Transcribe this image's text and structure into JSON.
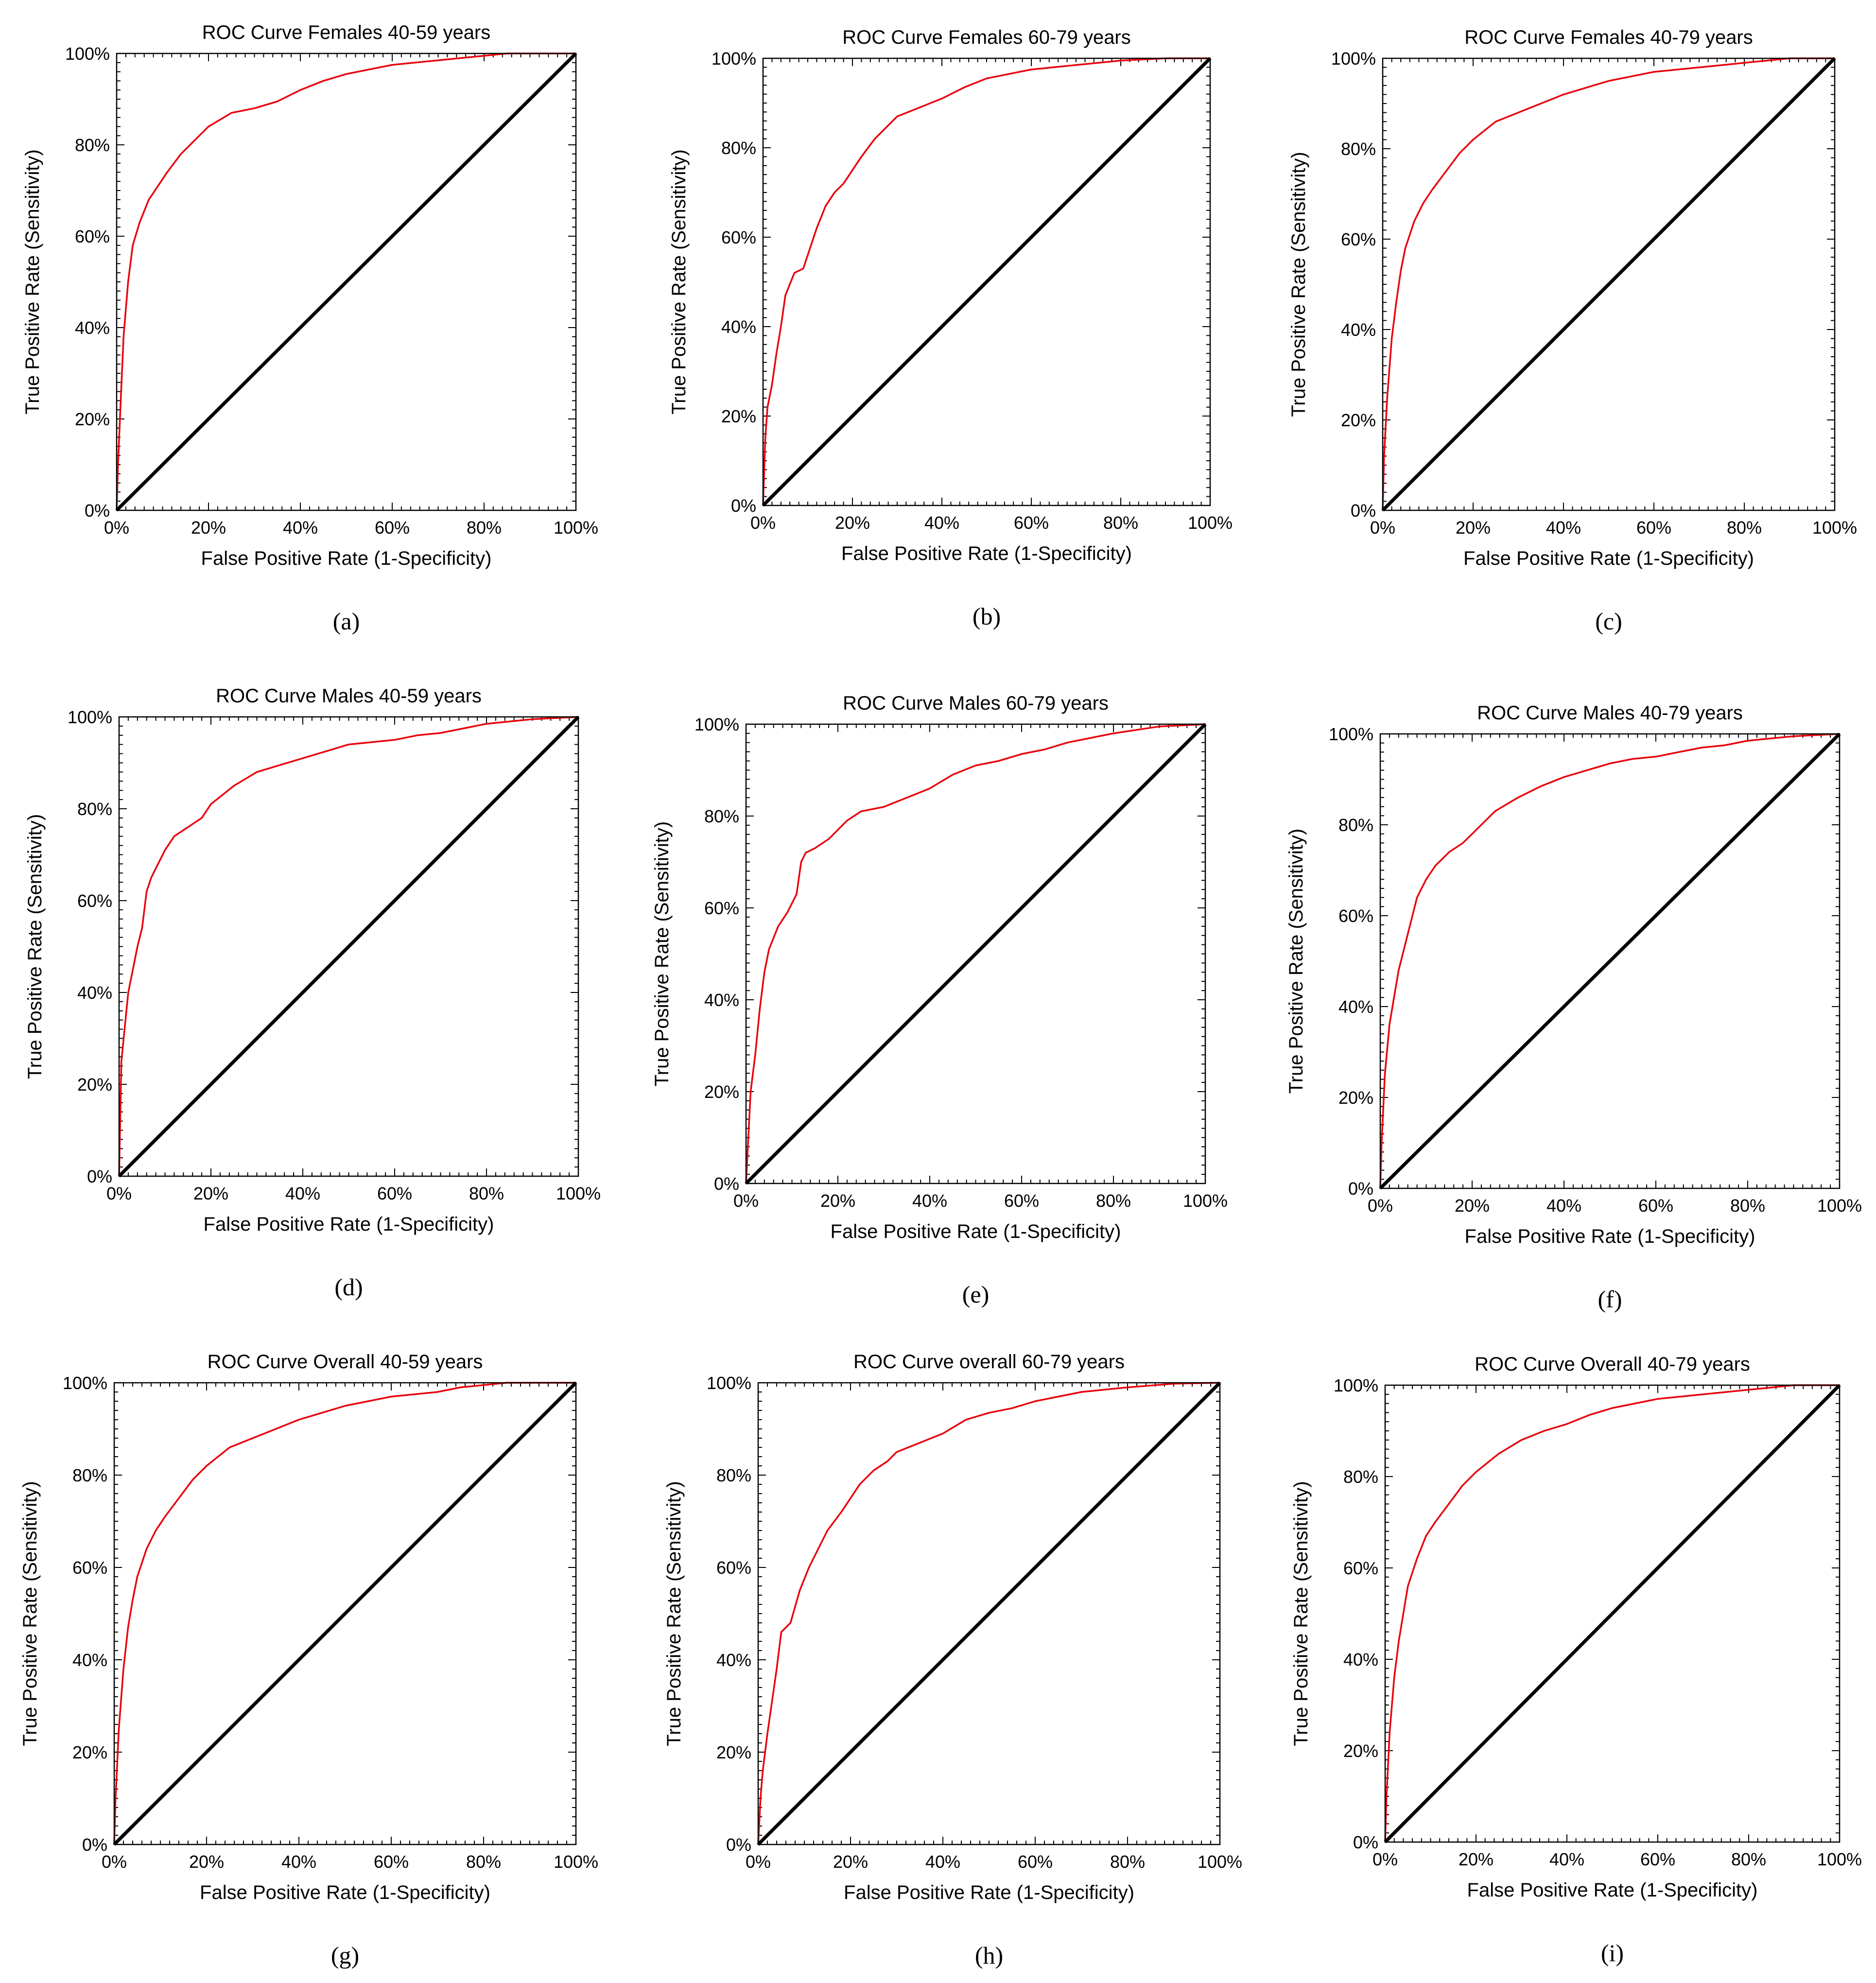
{
  "figure": {
    "colors": {
      "roc_curve": "#e8000b",
      "diagonal": "#000000",
      "axes": "#000000"
    }
  },
  "chart_data": [
    {
      "type": "line",
      "caption": "(a)",
      "title": "ROC Curve Females 40-59 years",
      "xlabel": "False Positive Rate (1-Specificity)",
      "ylabel": "True Positive Rate (Sensitivity)",
      "xlim": [
        0,
        100
      ],
      "ylim": [
        0,
        100
      ],
      "x_ticks": [
        "0%",
        "20%",
        "40%",
        "60%",
        "80%",
        "100%"
      ],
      "y_ticks": [
        "0%",
        "20%",
        "40%",
        "60%",
        "80%",
        "100%"
      ],
      "grid": false,
      "legend": "none",
      "series": [
        {
          "role": "roc",
          "x": [
            0,
            0.3,
            0.8,
            1.5,
            2.5,
            3.5,
            5,
            7,
            9,
            11,
            14,
            17,
            20,
            25,
            30,
            35,
            40,
            45,
            50,
            55,
            60,
            65,
            70,
            75,
            80,
            85,
            90,
            95,
            100
          ],
          "y": [
            0,
            10,
            22,
            38,
            50,
            58,
            63,
            68,
            71,
            74,
            78,
            81,
            84,
            87,
            88,
            89.5,
            92,
            94,
            95.5,
            96.5,
            97.5,
            98,
            98.5,
            99,
            99.5,
            100,
            100,
            100,
            100
          ]
        },
        {
          "role": "diagonal",
          "x": [
            0,
            100
          ],
          "y": [
            0,
            100
          ]
        }
      ]
    },
    {
      "type": "line",
      "caption": "(b)",
      "title": "ROC Curve Females 60-79 years",
      "xlabel": "False Positive Rate (1-Specificity)",
      "ylabel": "True Positive Rate (Sensitivity)",
      "xlim": [
        0,
        100
      ],
      "ylim": [
        0,
        100
      ],
      "x_ticks": [
        "0%",
        "20%",
        "40%",
        "60%",
        "80%",
        "100%"
      ],
      "y_ticks": [
        "0%",
        "20%",
        "40%",
        "60%",
        "80%",
        "100%"
      ],
      "grid": false,
      "legend": "none",
      "series": [
        {
          "role": "roc",
          "x": [
            0,
            0.5,
            1,
            2,
            3,
            4,
            5,
            7,
            9,
            10,
            12,
            14,
            16,
            18,
            20,
            22,
            25,
            28,
            30,
            35,
            40,
            45,
            50,
            55,
            60,
            70,
            80,
            90,
            100
          ],
          "y": [
            0,
            15,
            22,
            27,
            34,
            40,
            47,
            52,
            53,
            56,
            62,
            67,
            70,
            72,
            75,
            78,
            82,
            85,
            87,
            89,
            91,
            93.5,
            95.5,
            96.5,
            97.5,
            98.5,
            99.5,
            100,
            100
          ]
        },
        {
          "role": "diagonal",
          "x": [
            0,
            100
          ],
          "y": [
            0,
            100
          ]
        }
      ]
    },
    {
      "type": "line",
      "caption": "(c)",
      "title": "ROC Curve Females 40-79 years",
      "xlabel": "False Positive Rate (1-Specificity)",
      "ylabel": "True Positive Rate (Sensitivity)",
      "xlim": [
        0,
        100
      ],
      "ylim": [
        0,
        100
      ],
      "x_ticks": [
        "0%",
        "20%",
        "40%",
        "60%",
        "80%",
        "100%"
      ],
      "y_ticks": [
        "0%",
        "20%",
        "40%",
        "60%",
        "80%",
        "100%"
      ],
      "grid": false,
      "legend": "none",
      "series": [
        {
          "role": "roc",
          "x": [
            0,
            0.3,
            1,
            2,
            3,
            4,
            5,
            7,
            9,
            11,
            14,
            17,
            20,
            25,
            30,
            35,
            40,
            45,
            50,
            55,
            60,
            65,
            70,
            75,
            80,
            85,
            90,
            95,
            100
          ],
          "y": [
            0,
            12,
            25,
            38,
            46,
            53,
            58,
            64,
            68,
            71,
            75,
            79,
            82,
            86,
            88,
            90,
            92,
            93.5,
            95,
            96,
            97,
            97.5,
            98,
            98.5,
            99,
            99.5,
            100,
            100,
            100
          ]
        },
        {
          "role": "diagonal",
          "x": [
            0,
            100
          ],
          "y": [
            0,
            100
          ]
        }
      ]
    },
    {
      "type": "line",
      "caption": "(d)",
      "title": "ROC Curve Males 40-59 years",
      "xlabel": "False Positive Rate (1-Specificity)",
      "ylabel": "True Positive Rate (Sensitivity)",
      "xlim": [
        0,
        100
      ],
      "ylim": [
        0,
        100
      ],
      "x_ticks": [
        "0%",
        "20%",
        "40%",
        "60%",
        "80%",
        "100%"
      ],
      "y_ticks": [
        "0%",
        "20%",
        "40%",
        "60%",
        "80%",
        "100%"
      ],
      "grid": false,
      "legend": "none",
      "series": [
        {
          "role": "roc",
          "x": [
            0,
            0.5,
            1,
            2,
            3,
            4,
            5,
            6,
            7,
            8,
            10,
            12,
            15,
            18,
            20,
            25,
            30,
            35,
            40,
            45,
            50,
            55,
            60,
            65,
            70,
            75,
            80,
            90,
            100
          ],
          "y": [
            0,
            25,
            30,
            40,
            45,
            50,
            54,
            62,
            65,
            67,
            71,
            74,
            76,
            78,
            81,
            85,
            88,
            89.5,
            91,
            92.5,
            94,
            94.5,
            95,
            96,
            96.5,
            97.5,
            98.5,
            99.5,
            100
          ]
        },
        {
          "role": "diagonal",
          "x": [
            0,
            100
          ],
          "y": [
            0,
            100
          ]
        }
      ]
    },
    {
      "type": "line",
      "caption": "(e)",
      "title": "ROC Curve Males 60-79 years",
      "xlabel": "False Positive Rate (1-Specificity)",
      "ylabel": "True Positive Rate (Sensitivity)",
      "xlim": [
        0,
        100
      ],
      "ylim": [
        0,
        100
      ],
      "x_ticks": [
        "0%",
        "20%",
        "40%",
        "60%",
        "80%",
        "100%"
      ],
      "y_ticks": [
        "0%",
        "20%",
        "40%",
        "60%",
        "80%",
        "100%"
      ],
      "grid": false,
      "legend": "none",
      "series": [
        {
          "role": "roc",
          "x": [
            0,
            0.5,
            1,
            2,
            3,
            4,
            5,
            7,
            9,
            11,
            12,
            13,
            15,
            18,
            20,
            22,
            25,
            30,
            35,
            40,
            45,
            50,
            55,
            60,
            65,
            70,
            80,
            90,
            100
          ],
          "y": [
            0,
            10,
            20,
            28,
            38,
            46,
            51,
            56,
            59,
            63,
            70,
            72,
            73,
            75,
            77,
            79,
            81,
            82,
            84,
            86,
            89,
            91,
            92,
            93.5,
            94.5,
            96,
            98,
            99.5,
            100
          ]
        },
        {
          "role": "diagonal",
          "x": [
            0,
            100
          ],
          "y": [
            0,
            100
          ]
        }
      ]
    },
    {
      "type": "line",
      "caption": "(f)",
      "title": "ROC Curve Males 40-79 years",
      "xlabel": "False Positive Rate (1-Specificity)",
      "ylabel": "True Positive Rate (Sensitivity)",
      "xlim": [
        0,
        100
      ],
      "ylim": [
        0,
        100
      ],
      "x_ticks": [
        "0%",
        "20%",
        "40%",
        "60%",
        "80%",
        "100%"
      ],
      "y_ticks": [
        "0%",
        "20%",
        "40%",
        "60%",
        "80%",
        "100%"
      ],
      "grid": false,
      "legend": "none",
      "series": [
        {
          "role": "roc",
          "x": [
            0,
            0.3,
            1,
            2,
            3,
            4,
            5,
            6,
            7,
            8,
            10,
            12,
            15,
            18,
            20,
            25,
            30,
            35,
            40,
            45,
            50,
            55,
            60,
            65,
            70,
            75,
            80,
            90,
            100
          ],
          "y": [
            0,
            10,
            25,
            36,
            42,
            48,
            52,
            56,
            60,
            64,
            68,
            71,
            74,
            76,
            78,
            83,
            86,
            88.5,
            90.5,
            92,
            93.5,
            94.5,
            95,
            96,
            97,
            97.5,
            98.5,
            99.5,
            100
          ]
        },
        {
          "role": "diagonal",
          "x": [
            0,
            100
          ],
          "y": [
            0,
            100
          ]
        }
      ]
    },
    {
      "type": "line",
      "caption": "(g)",
      "title": "ROC Curve Overall 40-59 years",
      "xlabel": "False Positive Rate (1-Specificity)",
      "ylabel": "True Positive Rate (Sensitivity)",
      "xlim": [
        0,
        100
      ],
      "ylim": [
        0,
        100
      ],
      "x_ticks": [
        "0%",
        "20%",
        "40%",
        "60%",
        "80%",
        "100%"
      ],
      "y_ticks": [
        "0%",
        "20%",
        "40%",
        "60%",
        "80%",
        "100%"
      ],
      "grid": false,
      "legend": "none",
      "series": [
        {
          "role": "roc",
          "x": [
            0,
            0.3,
            1,
            2,
            3,
            4,
            5,
            7,
            9,
            11,
            14,
            17,
            20,
            25,
            30,
            35,
            40,
            45,
            50,
            55,
            60,
            65,
            70,
            75,
            80,
            85,
            90,
            95,
            100
          ],
          "y": [
            0,
            10,
            25,
            38,
            47,
            53,
            58,
            64,
            68,
            71,
            75,
            79,
            82,
            86,
            88,
            90,
            92,
            93.5,
            95,
            96,
            97,
            97.5,
            98,
            99,
            99.5,
            100,
            100,
            100,
            100
          ]
        },
        {
          "role": "diagonal",
          "x": [
            0,
            100
          ],
          "y": [
            0,
            100
          ]
        }
      ]
    },
    {
      "type": "line",
      "caption": "(h)",
      "title": "ROC Curve overall 60-79 years",
      "xlabel": "False Positive Rate (1-Specificity)",
      "ylabel": "True Positive Rate (Sensitivity)",
      "xlim": [
        0,
        100
      ],
      "ylim": [
        0,
        100
      ],
      "x_ticks": [
        "0%",
        "20%",
        "40%",
        "60%",
        "80%",
        "100%"
      ],
      "y_ticks": [
        "0%",
        "20%",
        "40%",
        "60%",
        "80%",
        "100%"
      ],
      "grid": false,
      "legend": "none",
      "series": [
        {
          "role": "roc",
          "x": [
            0,
            0.5,
            1,
            2,
            3,
            4,
            5,
            7,
            9,
            11,
            13,
            15,
            18,
            20,
            22,
            25,
            28,
            30,
            35,
            40,
            45,
            50,
            55,
            60,
            65,
            70,
            80,
            90,
            100
          ],
          "y": [
            0,
            10,
            16,
            24,
            31,
            38,
            46,
            48,
            55,
            60,
            64,
            68,
            72,
            75,
            78,
            81,
            83,
            85,
            87,
            89,
            92,
            93.5,
            94.5,
            96,
            97,
            98,
            99,
            99.8,
            100
          ]
        },
        {
          "role": "diagonal",
          "x": [
            0,
            100
          ],
          "y": [
            0,
            100
          ]
        }
      ]
    },
    {
      "type": "line",
      "caption": "(i)",
      "title": "ROC Curve Overall 40-79 years",
      "xlabel": "False Positive Rate (1-Specificity)",
      "ylabel": "True Positive Rate (Sensitivity)",
      "xlim": [
        0,
        100
      ],
      "ylim": [
        0,
        100
      ],
      "x_ticks": [
        "0%",
        "20%",
        "40%",
        "60%",
        "80%",
        "100%"
      ],
      "y_ticks": [
        "0%",
        "20%",
        "40%",
        "60%",
        "80%",
        "100%"
      ],
      "grid": false,
      "legend": "none",
      "series": [
        {
          "role": "roc",
          "x": [
            0,
            0.3,
            1,
            2,
            3,
            4,
            5,
            7,
            9,
            11,
            14,
            17,
            20,
            25,
            30,
            35,
            40,
            45,
            50,
            55,
            60,
            65,
            70,
            75,
            80,
            85,
            90,
            95,
            100
          ],
          "y": [
            0,
            10,
            24,
            36,
            44,
            50,
            56,
            62,
            67,
            70,
            74,
            78,
            81,
            85,
            88,
            90,
            91.5,
            93.5,
            95,
            96,
            97,
            97.5,
            98,
            98.5,
            99,
            99.5,
            100,
            100,
            100
          ]
        },
        {
          "role": "diagonal",
          "x": [
            0,
            100
          ],
          "y": [
            0,
            100
          ]
        }
      ]
    }
  ]
}
